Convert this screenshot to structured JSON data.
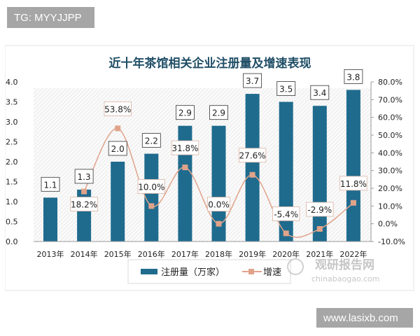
{
  "overlay": {
    "top_left_badge": "TG: MYYJJPP",
    "bottom_right_badge": "www.lasixb.com"
  },
  "watermark": {
    "brand": "观研报告网",
    "domain": "chinabaogao.com"
  },
  "chart_data": {
    "type": "bar+line",
    "title": "近十年茶馆相关企业注册量及增速表现",
    "categories": [
      "2013年",
      "2014年",
      "2015年",
      "2016年",
      "2017年",
      "2018年",
      "2019年",
      "2020年",
      "2021年",
      "2022年"
    ],
    "series": [
      {
        "name": "注册量（万家）",
        "type": "bar",
        "axis": "left",
        "color": "#1f6b8e",
        "values": [
          1.1,
          1.3,
          2.0,
          2.2,
          2.9,
          2.9,
          3.7,
          3.5,
          3.4,
          3.8
        ],
        "labels": [
          "1.1",
          "1.3",
          "2.0",
          "2.2",
          "2.9",
          "2.9",
          "3.7",
          "3.5",
          "3.4",
          "3.8"
        ]
      },
      {
        "name": "增速",
        "type": "line",
        "axis": "right",
        "color": "#e0a38a",
        "values": [
          null,
          18.2,
          53.8,
          10.0,
          31.8,
          0.0,
          27.6,
          -5.4,
          -2.9,
          11.8
        ],
        "labels": [
          "",
          "18.2%",
          "53.8%",
          "10.0%",
          "31.8%",
          "0.0%",
          "27.6%",
          "-5.4%",
          "-2.9%",
          "11.8%"
        ]
      }
    ],
    "y_left": {
      "range": [
        0,
        4.0
      ],
      "ticks": [
        "0.0",
        "0.5",
        "1.0",
        "1.5",
        "2.0",
        "2.5",
        "3.0",
        "3.5",
        "4.0"
      ]
    },
    "y_right": {
      "range": [
        -10,
        80
      ],
      "ticks": [
        "-10.0%",
        "0.0%",
        "10.0%",
        "20.0%",
        "30.0%",
        "40.0%",
        "50.0%",
        "60.0%",
        "70.0%",
        "80.0%"
      ]
    },
    "legend": "bottom",
    "grid": false
  }
}
